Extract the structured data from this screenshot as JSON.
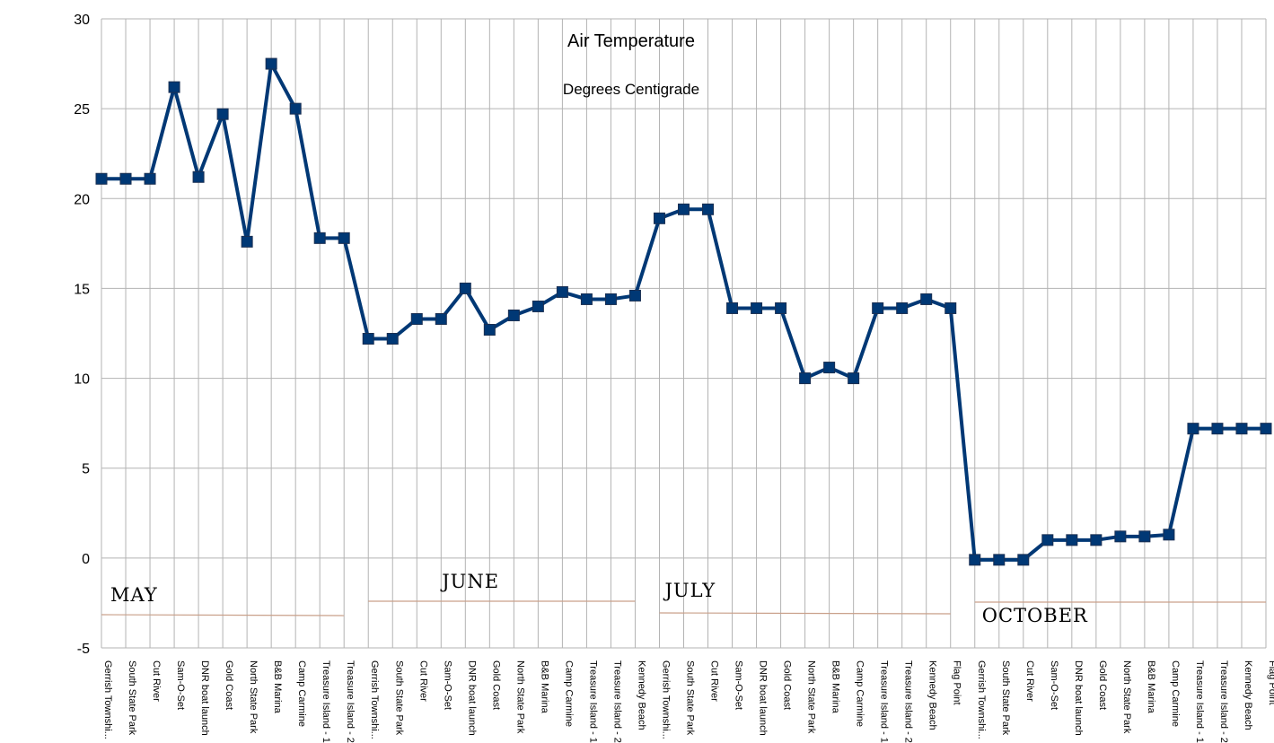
{
  "chart_data": {
    "type": "line",
    "title": "Air Temperature",
    "subtitle": "Degrees Centigrade",
    "xlabel": "",
    "ylabel": "",
    "ylim": [
      -5,
      30
    ],
    "yticks": [
      30,
      25,
      20,
      15,
      10,
      5,
      0,
      -5
    ],
    "grid": true,
    "line_color": "#003875",
    "month_labels": [
      {
        "label": "MAY",
        "from_index": 0,
        "to_index": 10
      },
      {
        "label": "JUNE",
        "from_index": 11,
        "to_index": 22
      },
      {
        "label": "JULY",
        "from_index": 23,
        "to_index": 35
      },
      {
        "label": "OCTOBER",
        "from_index": 36,
        "to_index": 48
      }
    ],
    "categories": [
      "Gerrish Townshi...",
      "South State Park",
      "Cut River",
      "Sam-O-Set",
      "DNR boat launch",
      "Gold Coast",
      "North State Park",
      "B&B Marina",
      "Camp Carmine",
      "Treasure Island - 1",
      "Treasure Island - 2",
      "Gerrish Townshi...",
      "South State Park",
      "Cut River",
      "Sam-O-Set",
      "DNR boat launch",
      "Gold Coast",
      "North State Park",
      "B&B Marina",
      "Camp Carmine",
      "Treasure Island - 1",
      "Treasure Island - 2",
      "Kennedy Beach",
      "Gerrish Townshi...",
      "South State Park",
      "Cut River",
      "Sam-O-Set",
      "DNR boat launch",
      "Gold Coast",
      "North State Park",
      "B&B Marina",
      "Camp Carmine",
      "Treasure Island - 1",
      "Treasure Island - 2",
      "Kennedy Beach",
      "Flag Point",
      "Gerrish Townshi...",
      "South State Park",
      "Cut River",
      "Sam-O-Set",
      "DNR boat launch",
      "Gold Coast",
      "North State Park",
      "B&B Marina",
      "Camp Carmine",
      "Treasure Island - 1",
      "Treasure Island - 2",
      "Kennedy Beach",
      "Flag Point"
    ],
    "values": [
      21.1,
      21.1,
      21.1,
      26.2,
      21.2,
      24.7,
      17.6,
      27.5,
      25.0,
      17.8,
      17.8,
      12.2,
      12.2,
      13.3,
      13.3,
      15.0,
      12.7,
      13.5,
      14.0,
      14.8,
      14.4,
      14.4,
      14.6,
      18.9,
      19.4,
      19.4,
      13.9,
      13.9,
      13.9,
      10.0,
      10.6,
      10.0,
      13.9,
      13.9,
      14.4,
      13.9,
      -0.1,
      -0.1,
      -0.1,
      1.0,
      1.0,
      1.0,
      1.2,
      1.2,
      1.3,
      7.2,
      7.2,
      7.2,
      7.2
    ]
  }
}
